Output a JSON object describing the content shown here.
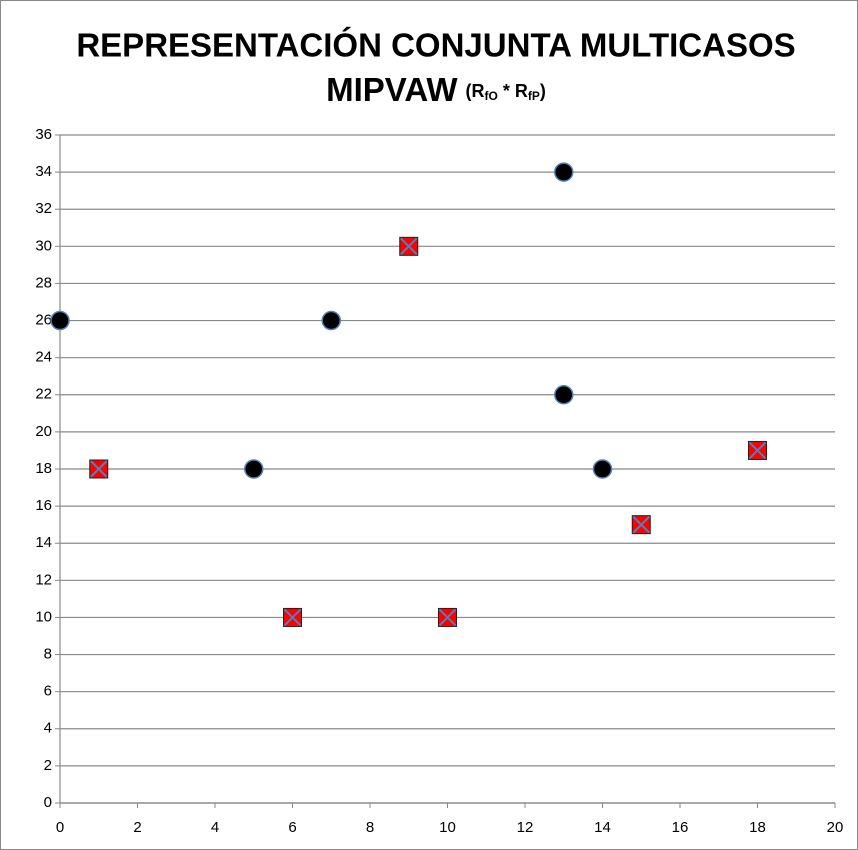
{
  "chart_data": {
    "type": "scatter",
    "title": [
      "REPRESENTACIÓN CONJUNTA MULTICASOS",
      "MIPVAW"
    ],
    "title_formula": [
      "(R",
      "fO",
      " * R",
      "fP",
      ")"
    ],
    "series": [
      {
        "marker": "circle",
        "color": "#000000",
        "x": [
          0,
          5,
          7,
          13,
          13,
          14
        ],
        "values": [
          26,
          18,
          26,
          34,
          22,
          18
        ]
      },
      {
        "marker": "square-x",
        "color": "#ff0000",
        "x": [
          1,
          6,
          9,
          10,
          15,
          18
        ],
        "values": [
          18,
          10,
          30,
          10,
          15,
          19
        ]
      }
    ],
    "xlim": [
      0,
      20
    ],
    "xticks": [
      0,
      2,
      4,
      6,
      8,
      10,
      12,
      14,
      16,
      18,
      20
    ],
    "ylim": [
      0,
      36
    ],
    "yticks": [
      0,
      2,
      4,
      6,
      8,
      10,
      12,
      14,
      16,
      18,
      20,
      22,
      24,
      26,
      28,
      30,
      32,
      34,
      36
    ],
    "grid": true
  }
}
